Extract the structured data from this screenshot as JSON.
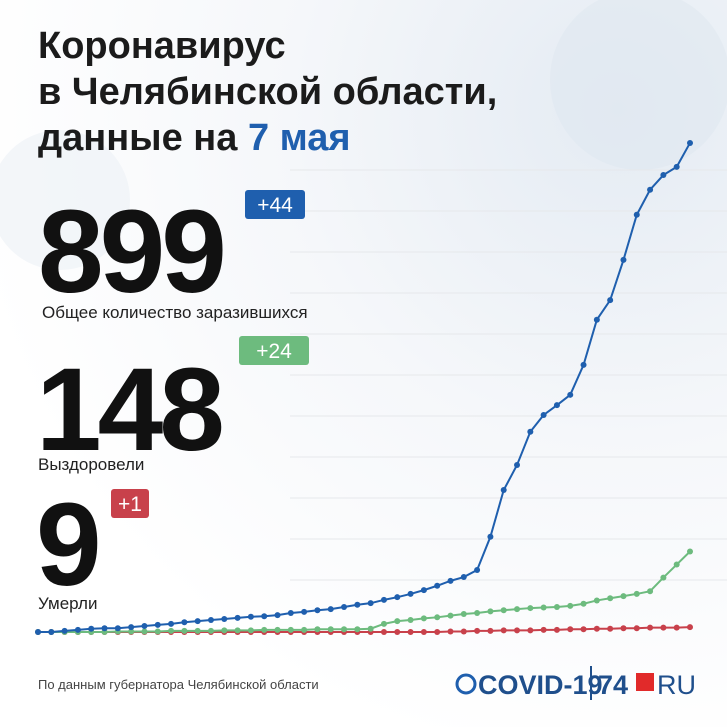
{
  "header": {
    "title_lines": [
      "Коронавирус",
      "в Челябинской области,"
    ],
    "title_last": "данные на",
    "date": "7 мая"
  },
  "stats": [
    {
      "value": 899,
      "change": "+44",
      "label": "Общее количество заразившихся"
    },
    {
      "value": 148,
      "change": "+24",
      "label": "Выздоровели"
    },
    {
      "value": 9,
      "change": "+1",
      "label": "Умерли"
    }
  ],
  "chart_data": {
    "type": "line",
    "categories": [
      null,
      null,
      null,
      null,
      null,
      null,
      null,
      null,
      null,
      null,
      null,
      null,
      null,
      null,
      null,
      null,
      null,
      null,
      null,
      null,
      null,
      null,
      null,
      null,
      null,
      null,
      null,
      null,
      null,
      null,
      null,
      null,
      null,
      null,
      null,
      null,
      null,
      null,
      null,
      null,
      null,
      null,
      null,
      null,
      null,
      null,
      null,
      null,
      null,
      null
    ],
    "ylim": [
      0,
      900
    ],
    "series": [
      {
        "name": "Общее количество заразившихся",
        "color": "#1f5fae",
        "values": [
          0,
          0,
          2,
          4,
          6,
          7,
          7,
          9,
          11,
          13,
          15,
          18,
          20,
          22,
          24,
          26,
          28,
          29,
          31,
          35,
          37,
          40,
          42,
          46,
          50,
          53,
          59,
          64,
          70,
          77,
          85,
          94,
          101,
          114,
          175,
          261,
          307,
          368,
          399,
          417,
          436,
          491,
          574,
          610,
          684,
          767,
          813,
          840,
          855,
          899
        ]
      },
      {
        "name": "Выздоровели",
        "color": "#6dbb7e",
        "values": [
          0,
          0,
          0,
          0,
          0,
          0,
          1,
          1,
          1,
          1,
          2,
          2,
          2,
          2,
          3,
          3,
          3,
          4,
          4,
          4,
          4,
          5,
          5,
          5,
          5,
          6,
          15,
          20,
          22,
          25,
          27,
          30,
          33,
          35,
          38,
          40,
          42,
          44,
          45,
          46,
          48,
          52,
          58,
          62,
          66,
          70,
          75,
          100,
          124,
          148
        ]
      },
      {
        "name": "Умерли",
        "color": "#c8414b",
        "values": [
          0,
          0,
          0,
          0,
          0,
          0,
          0,
          0,
          0,
          0,
          0,
          0,
          0,
          0,
          0,
          0,
          0,
          0,
          0,
          0,
          0,
          0,
          0,
          0,
          0,
          0,
          0,
          0,
          0,
          0,
          0,
          1,
          1,
          2,
          2,
          3,
          3,
          3,
          4,
          4,
          5,
          5,
          6,
          6,
          7,
          7,
          8,
          8,
          8,
          9
        ]
      }
    ]
  },
  "footer": {
    "source": "По данным губернатора Челябинской области",
    "logo_covid": "COVID-19",
    "logo_num": "74",
    "logo_ru": "RU"
  }
}
